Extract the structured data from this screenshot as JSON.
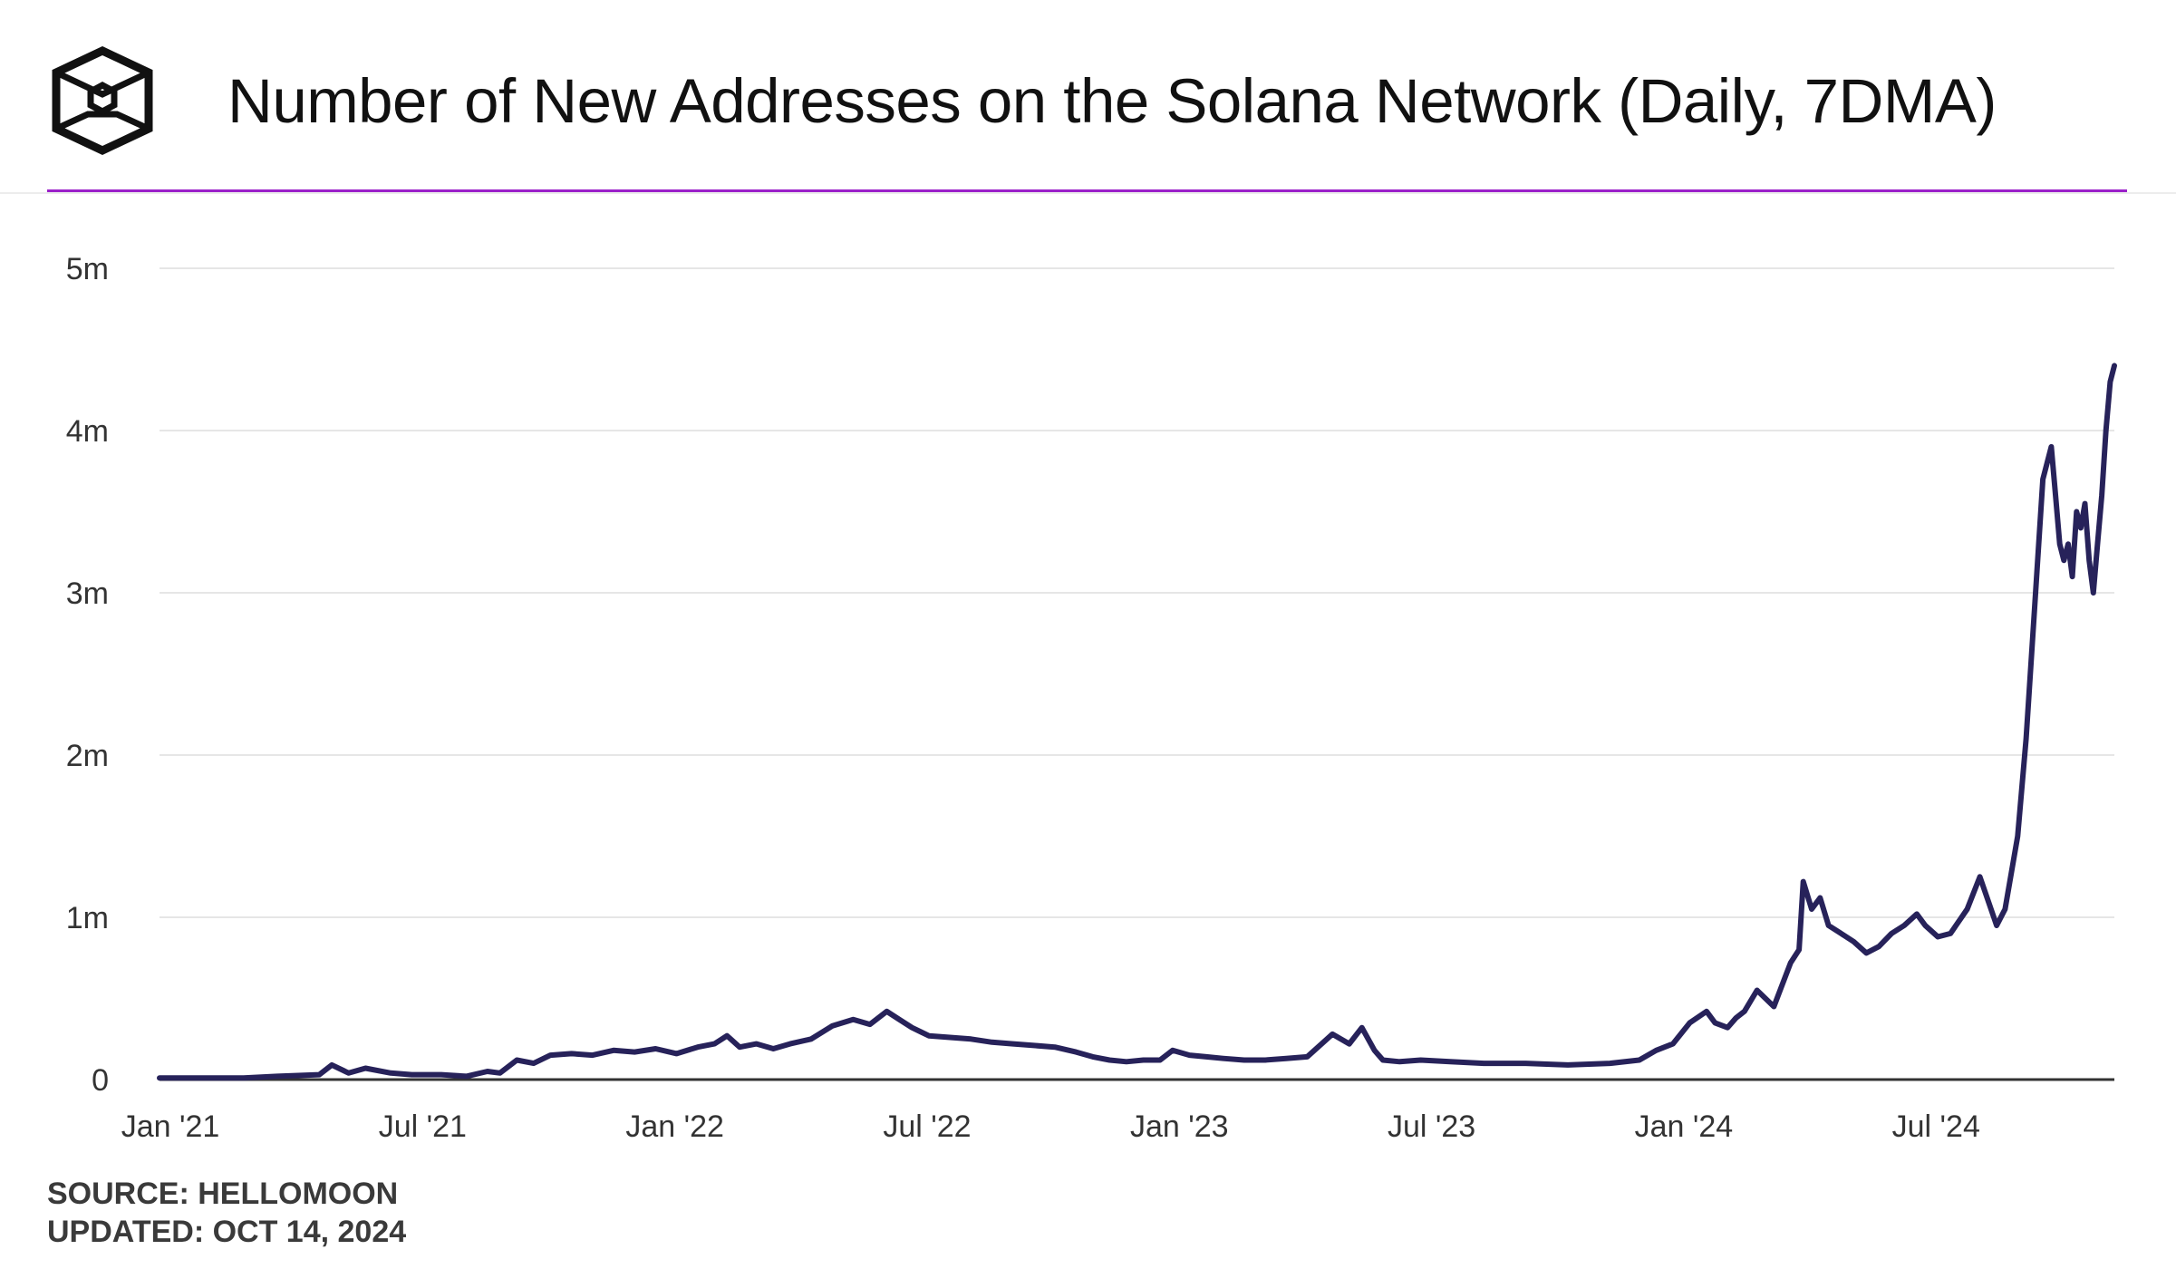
{
  "header": {
    "logo_icon": "hexagon-cube-logo-icon",
    "accent_color": "#9b20c9"
  },
  "footer": {
    "source": "SOURCE: HELLOMOON",
    "updated": "UPDATED: OCT 14, 2024"
  },
  "chart_data": {
    "type": "line",
    "title": "Number of New Addresses on the Solana Network (Daily, 7DMA)",
    "xlabel": "",
    "ylabel": "",
    "x_range": [
      0,
      46.5
    ],
    "x_unit": "months since Jan 2021",
    "ylim": [
      0,
      5
    ],
    "y_unit": "millions",
    "grid": true,
    "line_color": "#27225a",
    "y_ticks": [
      {
        "value": 0,
        "label": "0"
      },
      {
        "value": 1,
        "label": "1m"
      },
      {
        "value": 2,
        "label": "2m"
      },
      {
        "value": 3,
        "label": "3m"
      },
      {
        "value": 4,
        "label": "4m"
      },
      {
        "value": 5,
        "label": "5m"
      }
    ],
    "x_ticks": [
      {
        "value": 0,
        "label": "Jan '21"
      },
      {
        "value": 6,
        "label": "Jul '21"
      },
      {
        "value": 12,
        "label": "Jan '22"
      },
      {
        "value": 18,
        "label": "Jul '22"
      },
      {
        "value": 24,
        "label": "Jan '23"
      },
      {
        "value": 30,
        "label": "Jul '23"
      },
      {
        "value": 36,
        "label": "Jan '24"
      },
      {
        "value": 42,
        "label": "Jul '24"
      }
    ],
    "series": [
      {
        "name": "New Addresses (7DMA)",
        "x": [
          0,
          1,
          2,
          2.8,
          3.8,
          4.1,
          4.5,
          4.9,
          5.5,
          6,
          6.7,
          7.3,
          7.8,
          8.1,
          8.5,
          8.9,
          9.3,
          9.8,
          10.3,
          10.8,
          11.3,
          11.8,
          12.3,
          12.8,
          13.2,
          13.5,
          13.8,
          14.2,
          14.6,
          15,
          15.5,
          16,
          16.5,
          16.9,
          17.3,
          17.6,
          17.9,
          18.3,
          18.8,
          19.3,
          19.8,
          20.3,
          20.8,
          21.3,
          21.8,
          22.2,
          22.6,
          23,
          23.4,
          23.8,
          24.1,
          24.5,
          24.9,
          25.3,
          25.8,
          26.3,
          26.8,
          27.3,
          27.9,
          28.3,
          28.6,
          28.9,
          29.1,
          29.5,
          30,
          30.7,
          31.5,
          32.5,
          33.5,
          34.5,
          35.2,
          35.6,
          36,
          36.4,
          36.8,
          37,
          37.3,
          37.5,
          37.7,
          38,
          38.4,
          38.8,
          39,
          39.1,
          39.3,
          39.5,
          39.7,
          40,
          40.3,
          40.6,
          40.9,
          41.2,
          41.5,
          41.8,
          42,
          42.3,
          42.6,
          43,
          43.3,
          43.7,
          43.9,
          44.2,
          44.4,
          44.6,
          44.8,
          45,
          45.1,
          45.2,
          45.3,
          45.4,
          45.5,
          45.6,
          45.7,
          45.8,
          45.9,
          46,
          46.1,
          46.2,
          46.3,
          46.4,
          46.5
        ],
        "y": [
          0.01,
          0.01,
          0.01,
          0.02,
          0.03,
          0.09,
          0.04,
          0.07,
          0.04,
          0.03,
          0.03,
          0.02,
          0.05,
          0.04,
          0.12,
          0.1,
          0.15,
          0.16,
          0.15,
          0.18,
          0.17,
          0.19,
          0.16,
          0.2,
          0.22,
          0.27,
          0.2,
          0.22,
          0.19,
          0.22,
          0.25,
          0.33,
          0.37,
          0.34,
          0.42,
          0.37,
          0.32,
          0.27,
          0.26,
          0.25,
          0.23,
          0.22,
          0.21,
          0.2,
          0.17,
          0.14,
          0.12,
          0.11,
          0.12,
          0.12,
          0.18,
          0.15,
          0.14,
          0.13,
          0.12,
          0.12,
          0.13,
          0.14,
          0.28,
          0.22,
          0.32,
          0.18,
          0.12,
          0.11,
          0.12,
          0.11,
          0.1,
          0.1,
          0.09,
          0.1,
          0.12,
          0.18,
          0.22,
          0.35,
          0.42,
          0.35,
          0.32,
          0.38,
          0.42,
          0.55,
          0.45,
          0.72,
          0.8,
          1.22,
          1.05,
          1.12,
          0.95,
          0.9,
          0.85,
          0.78,
          0.82,
          0.9,
          0.95,
          1.02,
          0.95,
          0.88,
          0.9,
          1.05,
          1.25,
          0.95,
          1.05,
          1.5,
          2.1,
          2.9,
          3.7,
          3.9,
          3.6,
          3.3,
          3.2,
          3.3,
          3.1,
          3.5,
          3.4,
          3.55,
          3.2,
          3.0,
          3.3,
          3.6,
          4.0,
          4.3,
          4.4
        ]
      }
    ]
  }
}
